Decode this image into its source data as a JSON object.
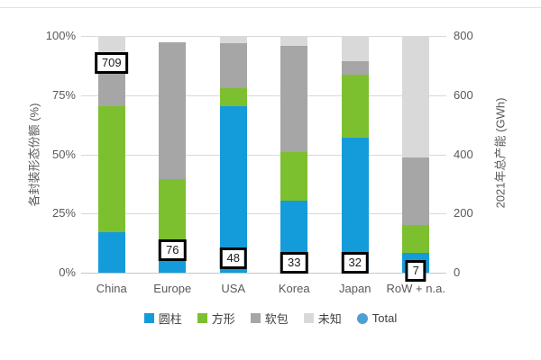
{
  "chart_data": {
    "type": "bar",
    "stacked": true,
    "stack_unit": "percent",
    "grid": true,
    "legend_position": "bottom",
    "categories": [
      "China",
      "Europe",
      "USA",
      "Korea",
      "Japan",
      "RoW + n.a."
    ],
    "series": [
      {
        "name": "圆柱",
        "color": "#149BD9",
        "values": [
          17,
          5.5,
          70.5,
          30.5,
          57,
          8.5
        ]
      },
      {
        "name": "方形",
        "color": "#7DC02F",
        "values": [
          53.5,
          34,
          7.5,
          20.5,
          26.5,
          11.5
        ]
      },
      {
        "name": "软包",
        "color": "#A6A6A6",
        "values": [
          19.5,
          58,
          19,
          45,
          6,
          28.5
        ]
      },
      {
        "name": "未知",
        "color": "#D9D9D9",
        "values": [
          10,
          0,
          3,
          4,
          10.5,
          51.5
        ]
      }
    ],
    "total_series": {
      "name": "Total",
      "color": "#4EA0D4",
      "marker": "circle",
      "axis": "right",
      "values": [
        709,
        76,
        48,
        33,
        32,
        7
      ]
    },
    "left_axis": {
      "label": "各封装形态份额 (%)",
      "min": 0,
      "max": 100,
      "ticks": [
        "100%",
        "75%",
        "50%",
        "25%",
        "0%"
      ]
    },
    "right_axis": {
      "label": "2021年总产能 (GWh)",
      "min": 0,
      "max": 800,
      "ticks": [
        "800",
        "600",
        "400",
        "200",
        "0"
      ]
    },
    "legend": [
      "圆柱",
      "方形",
      "软包",
      "未知",
      "Total"
    ]
  }
}
